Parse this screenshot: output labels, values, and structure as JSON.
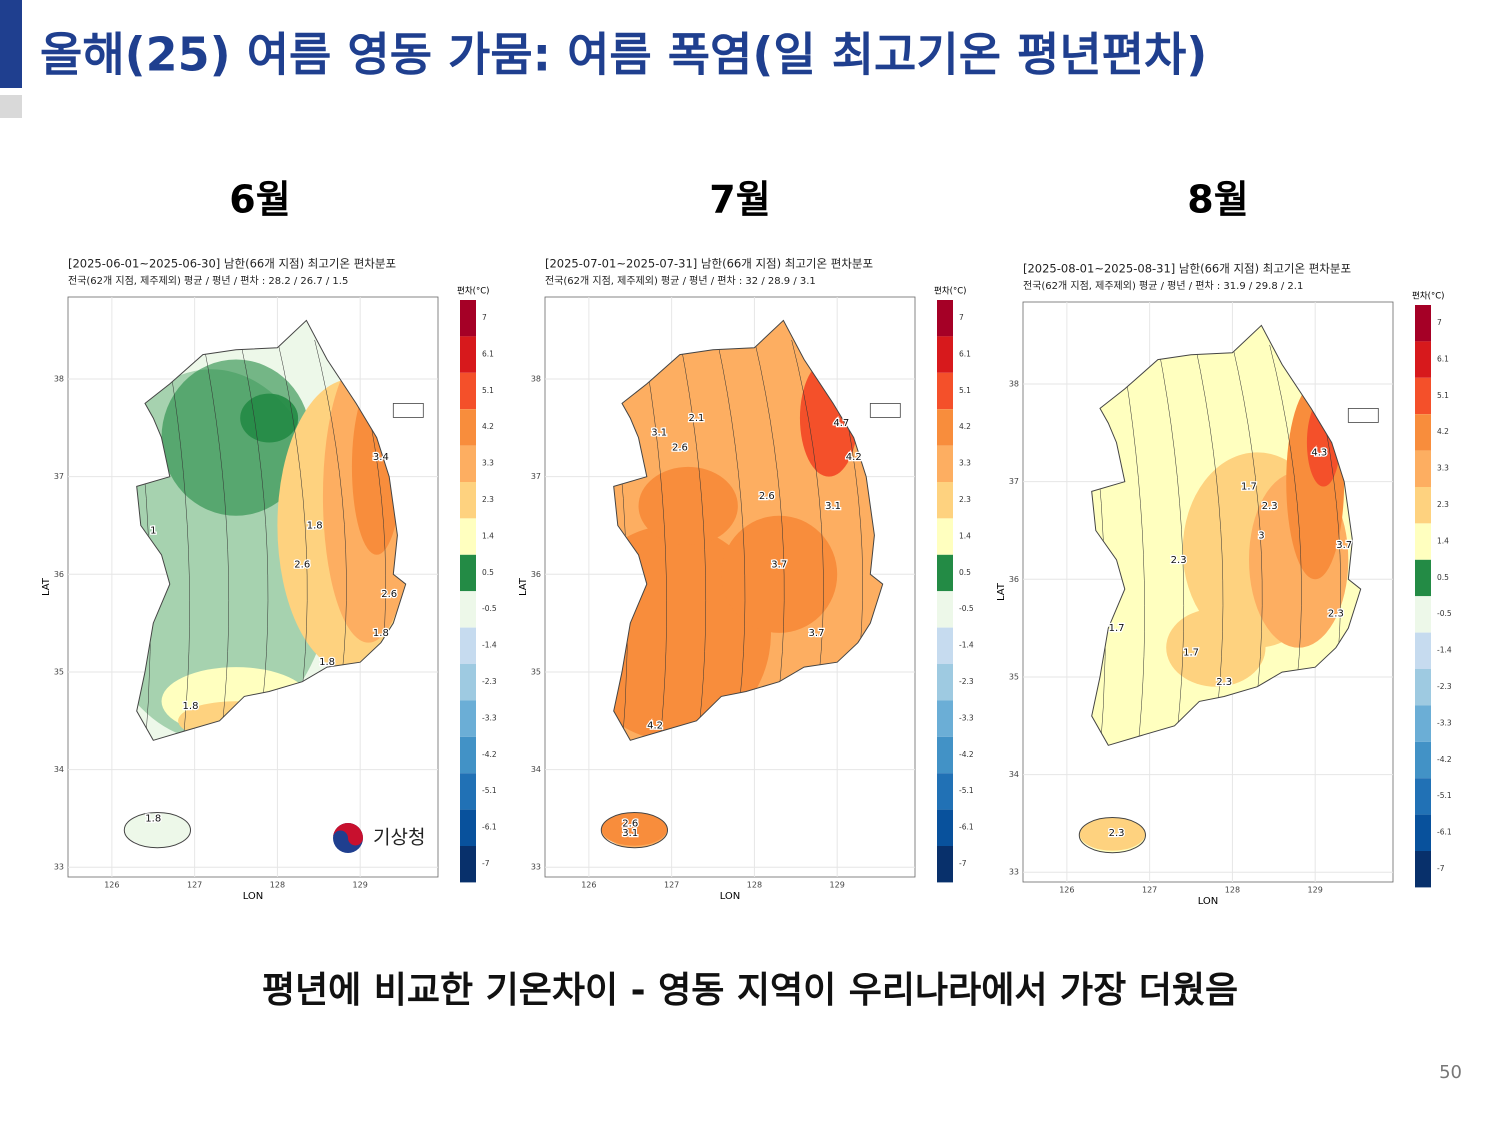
{
  "header": {
    "title": "올해(25) 여름 영동 가뭄: 여름 폭염(일 최고기온 평년편차)"
  },
  "legend": {
    "title": "편차(°C)",
    "values": [
      7,
      6.1,
      5.1,
      4.2,
      3.3,
      2.3,
      1.4,
      0.5,
      -0.5,
      -1.4,
      -2.3,
      -3.3,
      -4.2,
      -5.1,
      -6.1,
      -7
    ],
    "colors": [
      "#a50026",
      "#d7191c",
      "#f4502a",
      "#f88d3c",
      "#fdae61",
      "#fed27f",
      "#ffffbf",
      "#238b45",
      "#edf8e9",
      "#c6dbef",
      "#9ecae1",
      "#6baed6",
      "#4292c6",
      "#2171b5",
      "#08519c",
      "#08306b"
    ]
  },
  "axes": {
    "x_label": "LON",
    "y_label": "LAT",
    "lon_ticks": [
      126,
      127,
      128,
      129
    ],
    "lat_ticks": [
      33,
      34,
      35,
      36,
      37,
      38
    ],
    "lon_lim": [
      125.47,
      129.94
    ],
    "lat_lim": [
      32.9,
      38.84
    ]
  },
  "panels": [
    {
      "month": "6월",
      "title": "[2025-06-01~2025-06-30] 남한(66개 지점) 최고기온 편차분포",
      "subtitle": "전국(62개 지점, 제주제외) 평균 / 평년 / 편차 : 28.2 / 26.7 / 1.5",
      "contour_labels": [
        1.8,
        2.6,
        2.6,
        1.8,
        3.4,
        1,
        1.8,
        1.8,
        1.8
      ]
    },
    {
      "month": "7월",
      "title": "[2025-07-01~2025-07-31] 남한(66개 지점) 최고기온 편차분포",
      "subtitle": "전국(62개 지점, 제주제외) 평균 / 평년 / 편차 : 32 / 28.9 / 3.1",
      "contour_labels": [
        2.1,
        3.1,
        2.6,
        4.7,
        4.2,
        2.6,
        3.1,
        3.7,
        3.7,
        2.6,
        3.1,
        4.2
      ]
    },
    {
      "month": "8월",
      "title": "[2025-08-01~2025-08-31] 남한(66개 지점) 최고기온 편차분포",
      "subtitle": "전국(62개 지점, 제주제외) 평균 / 평년 / 편차 : 31.9 / 29.8 / 2.1",
      "contour_labels": [
        4.3,
        1.7,
        2.3,
        3,
        3.7,
        2.3,
        1.7,
        1.7,
        2.3,
        2.3,
        2.3
      ]
    }
  ],
  "logo": "기상청",
  "footer": {
    "caption": "평년에 비교한 기온차이 - 영동 지역이 우리나라에서 가장 더웠음",
    "page_number": "50"
  }
}
